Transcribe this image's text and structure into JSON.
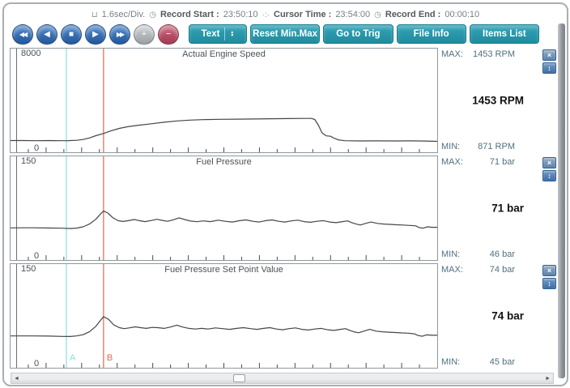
{
  "topbar": {
    "icons": {
      "interval": "⊔",
      "record_start_clock": "◷",
      "cursor_crosshair": "·:·",
      "record_end_clock": "◷"
    },
    "time_per_div": "1.6sec/Div.",
    "record_start_label": "Record Start :",
    "record_start": "23:50:10",
    "cursor_time_label": "Cursor Time :",
    "cursor_time": "23:54:00",
    "record_end_label": "Record End :",
    "record_end": "00:00:10"
  },
  "toolbar": {
    "playback": [
      {
        "name": "rewind",
        "glyph": "◀◀"
      },
      {
        "name": "step-back",
        "glyph": "◀"
      },
      {
        "name": "stop",
        "glyph": "■"
      },
      {
        "name": "play",
        "glyph": "▶"
      },
      {
        "name": "fast-forward",
        "glyph": "▶▶"
      },
      {
        "name": "zoom-in",
        "glyph": "+"
      },
      {
        "name": "zoom-out",
        "glyph": "−"
      }
    ],
    "text_button": {
      "label": "Text",
      "up_icon": "▲",
      "down_icon": "▼"
    },
    "action_buttons": [
      {
        "label": "Reset Min.Max"
      },
      {
        "label": "Go to Trig"
      },
      {
        "label": "File Info"
      },
      {
        "label": "Items List"
      }
    ]
  },
  "panel_buttons": {
    "close_icon": "×",
    "scale_icon": "↕"
  },
  "cursors": {
    "a_label": "A",
    "b_label": "B",
    "a_color": "#8adde0",
    "b_color": "#e2684d",
    "a_x": 0.131,
    "b_x": 0.218
  },
  "panels": [
    {
      "title": "Actual Engine Speed",
      "y_top": "8000",
      "y_zero": "0",
      "max_label": "MAX:",
      "max_value": "1453 RPM",
      "current": "1453 RPM",
      "min_label": "MIN:",
      "min_value": "871 RPM"
    },
    {
      "title": "Fuel Pressure",
      "y_top": "150",
      "y_zero": "0",
      "max_label": "MAX:",
      "max_value": "71 bar",
      "current": "71 bar",
      "min_label": "MIN:",
      "min_value": "46 bar"
    },
    {
      "title": "Fuel Pressure Set Point Value",
      "y_top": "150",
      "y_zero": "0",
      "max_label": "MAX:",
      "max_value": "74 bar",
      "current": "74 bar",
      "min_label": "MIN:",
      "min_value": "45 bar"
    }
  ],
  "scrollbar": {
    "left_arrow_icon": "◄",
    "right_arrow_icon": "►",
    "thumb_position": 0.41
  },
  "chart_data": [
    {
      "type": "line",
      "title": "Actual Engine Speed",
      "ylabel": "RPM",
      "ylim": [
        0,
        8000
      ],
      "x_divisions": 24,
      "sec_per_div": 1.6,
      "grid": false,
      "readouts": {
        "max": 1453,
        "min": 871,
        "cursor_value": 1453,
        "unit": "RPM"
      },
      "show_cursor_labels": false,
      "series": [
        {
          "name": "engine_speed",
          "color": "#454545",
          "points": [
            [
              0,
              905
            ],
            [
              0.03,
              908
            ],
            [
              0.06,
              895
            ],
            [
              0.09,
              905
            ],
            [
              0.115,
              893
            ],
            [
              0.135,
              900
            ],
            [
              0.155,
              925
            ],
            [
              0.17,
              985
            ],
            [
              0.185,
              1105
            ],
            [
              0.2,
              1280
            ],
            [
              0.218,
              1450
            ],
            [
              0.235,
              1650
            ],
            [
              0.255,
              1845
            ],
            [
              0.275,
              1975
            ],
            [
              0.3,
              2085
            ],
            [
              0.33,
              2200
            ],
            [
              0.36,
              2320
            ],
            [
              0.39,
              2420
            ],
            [
              0.42,
              2480
            ],
            [
              0.45,
              2520
            ],
            [
              0.49,
              2545
            ],
            [
              0.53,
              2555
            ],
            [
              0.57,
              2570
            ],
            [
              0.61,
              2590
            ],
            [
              0.65,
              2600
            ],
            [
              0.69,
              2610
            ],
            [
              0.705,
              2612
            ],
            [
              0.713,
              2530
            ],
            [
              0.722,
              2060
            ],
            [
              0.73,
              1500
            ],
            [
              0.74,
              1270
            ],
            [
              0.75,
              1240
            ],
            [
              0.758,
              1090
            ],
            [
              0.768,
              960
            ],
            [
              0.783,
              895
            ],
            [
              0.82,
              872
            ],
            [
              0.86,
              882
            ],
            [
              0.9,
              872
            ],
            [
              0.94,
              880
            ],
            [
              0.97,
              868
            ],
            [
              1,
              845
            ]
          ]
        }
      ]
    },
    {
      "type": "line",
      "title": "Fuel Pressure",
      "ylabel": "bar",
      "ylim": [
        0,
        150
      ],
      "x_divisions": 24,
      "sec_per_div": 1.6,
      "grid": false,
      "readouts": {
        "max": 71,
        "min": 46,
        "cursor_value": 71,
        "unit": "bar"
      },
      "show_cursor_labels": false,
      "series": [
        {
          "name": "fuel_pressure",
          "color": "#454545",
          "points": [
            [
              0,
              46.5
            ],
            [
              0.05,
              46.6
            ],
            [
              0.09,
              46.3
            ],
            [
              0.12,
              46.0
            ],
            [
              0.14,
              45.6
            ],
            [
              0.155,
              46.2
            ],
            [
              0.17,
              48
            ],
            [
              0.185,
              52
            ],
            [
              0.2,
              59
            ],
            [
              0.21,
              66
            ],
            [
              0.218,
              71
            ],
            [
              0.228,
              68
            ],
            [
              0.24,
              61
            ],
            [
              0.252,
              57
            ],
            [
              0.263,
              55.8
            ],
            [
              0.275,
              56.8
            ],
            [
              0.29,
              58.6
            ],
            [
              0.302,
              57
            ],
            [
              0.315,
              55.6
            ],
            [
              0.33,
              57.2
            ],
            [
              0.343,
              59
            ],
            [
              0.355,
              57.4
            ],
            [
              0.368,
              56
            ],
            [
              0.382,
              58.2
            ],
            [
              0.395,
              61
            ],
            [
              0.408,
              58.6
            ],
            [
              0.422,
              56.4
            ],
            [
              0.437,
              55.4
            ],
            [
              0.452,
              56.6
            ],
            [
              0.468,
              55.6
            ],
            [
              0.487,
              57.6
            ],
            [
              0.503,
              56
            ],
            [
              0.52,
              55
            ],
            [
              0.537,
              57
            ],
            [
              0.552,
              58
            ],
            [
              0.568,
              56
            ],
            [
              0.583,
              55
            ],
            [
              0.598,
              57
            ],
            [
              0.613,
              58
            ],
            [
              0.628,
              56
            ],
            [
              0.643,
              55
            ],
            [
              0.658,
              56.6
            ],
            [
              0.673,
              57.6
            ],
            [
              0.688,
              55.6
            ],
            [
              0.703,
              54.6
            ],
            [
              0.718,
              56
            ],
            [
              0.733,
              57
            ],
            [
              0.748,
              55
            ],
            [
              0.763,
              54
            ],
            [
              0.778,
              55.6
            ],
            [
              0.79,
              56.6
            ],
            [
              0.8,
              54
            ],
            [
              0.81,
              52
            ],
            [
              0.82,
              50.6
            ],
            [
              0.832,
              53
            ],
            [
              0.845,
              55
            ],
            [
              0.86,
              53
            ],
            [
              0.875,
              52
            ],
            [
              0.89,
              51.6
            ],
            [
              0.905,
              51
            ],
            [
              0.92,
              50.6
            ],
            [
              0.935,
              50
            ],
            [
              0.95,
              49.4
            ],
            [
              0.957,
              47
            ],
            [
              0.967,
              46
            ],
            [
              0.977,
              48
            ],
            [
              0.988,
              47.4
            ],
            [
              1,
              47.4
            ]
          ]
        }
      ]
    },
    {
      "type": "line",
      "title": "Fuel Pressure Set Point Value",
      "ylabel": "bar",
      "ylim": [
        0,
        150
      ],
      "x_divisions": 24,
      "sec_per_div": 1.6,
      "grid": false,
      "readouts": {
        "max": 74,
        "min": 45,
        "cursor_value": 74,
        "unit": "bar"
      },
      "show_cursor_labels": true,
      "series": [
        {
          "name": "fuel_pressure_set_point",
          "color": "#454545",
          "points": [
            [
              0,
              46
            ],
            [
              0.05,
              46
            ],
            [
              0.09,
              45.8
            ],
            [
              0.12,
              45.4
            ],
            [
              0.14,
              45.2
            ],
            [
              0.155,
              46
            ],
            [
              0.17,
              47.8
            ],
            [
              0.185,
              52
            ],
            [
              0.2,
              60
            ],
            [
              0.21,
              68
            ],
            [
              0.218,
              74
            ],
            [
              0.23,
              70
            ],
            [
              0.242,
              62
            ],
            [
              0.255,
              58
            ],
            [
              0.266,
              56.6
            ],
            [
              0.278,
              57.6
            ],
            [
              0.292,
              59.2
            ],
            [
              0.305,
              58
            ],
            [
              0.318,
              57
            ],
            [
              0.332,
              58.4
            ],
            [
              0.345,
              58
            ],
            [
              0.36,
              57
            ],
            [
              0.375,
              59
            ],
            [
              0.39,
              61.6
            ],
            [
              0.403,
              59
            ],
            [
              0.418,
              57
            ],
            [
              0.433,
              56
            ],
            [
              0.448,
              57
            ],
            [
              0.463,
              56
            ],
            [
              0.48,
              57.6
            ],
            [
              0.497,
              56.6
            ],
            [
              0.513,
              55.6
            ],
            [
              0.53,
              57
            ],
            [
              0.546,
              58
            ],
            [
              0.562,
              56.6
            ],
            [
              0.578,
              55.6
            ],
            [
              0.593,
              57
            ],
            [
              0.608,
              58
            ],
            [
              0.623,
              56
            ],
            [
              0.638,
              55
            ],
            [
              0.653,
              56.6
            ],
            [
              0.668,
              57.6
            ],
            [
              0.683,
              55.6
            ],
            [
              0.698,
              54.6
            ],
            [
              0.713,
              56
            ],
            [
              0.728,
              57
            ],
            [
              0.743,
              55
            ],
            [
              0.758,
              54
            ],
            [
              0.773,
              55.6
            ],
            [
              0.785,
              56.6
            ],
            [
              0.795,
              54
            ],
            [
              0.805,
              52
            ],
            [
              0.816,
              50.6
            ],
            [
              0.828,
              53
            ],
            [
              0.842,
              55.6
            ],
            [
              0.857,
              53
            ],
            [
              0.872,
              52
            ],
            [
              0.887,
              51.4
            ],
            [
              0.902,
              51
            ],
            [
              0.917,
              50.4
            ],
            [
              0.932,
              50
            ],
            [
              0.947,
              49
            ],
            [
              0.955,
              46.6
            ],
            [
              0.965,
              45.6
            ],
            [
              0.975,
              47.6
            ],
            [
              0.988,
              47
            ],
            [
              1,
              47
            ]
          ]
        }
      ]
    }
  ]
}
